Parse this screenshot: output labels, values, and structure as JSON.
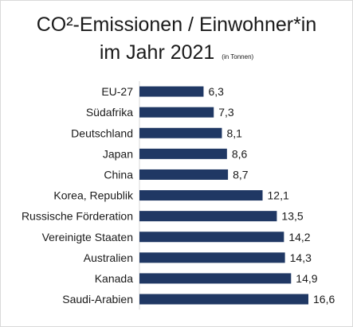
{
  "chart_data": {
    "type": "bar",
    "orientation": "horizontal",
    "title_line1": "CO²-Emissionen / Einwohner*in",
    "title_line2": "im Jahr 2021",
    "title_unit": "(in Tonnen)",
    "categories": [
      "EU-27",
      "Südafrika",
      "Deutschland",
      "Japan",
      "China",
      "Korea, Republik",
      "Russische Förderation",
      "Vereinigte Staaten",
      "Australien",
      "Kanada",
      "Saudi-Arabien"
    ],
    "values": [
      6.3,
      7.3,
      8.1,
      8.6,
      8.7,
      12.1,
      13.5,
      14.2,
      14.3,
      14.9,
      16.6
    ],
    "value_labels": [
      "6,3",
      "7,3",
      "8,1",
      "8,6",
      "8,7",
      "12,1",
      "13,5",
      "14,2",
      "14,3",
      "14,9",
      "16,6"
    ],
    "xlim": [
      0,
      16.6
    ],
    "grid": false,
    "legend": "none",
    "bar_color": "#203864"
  }
}
